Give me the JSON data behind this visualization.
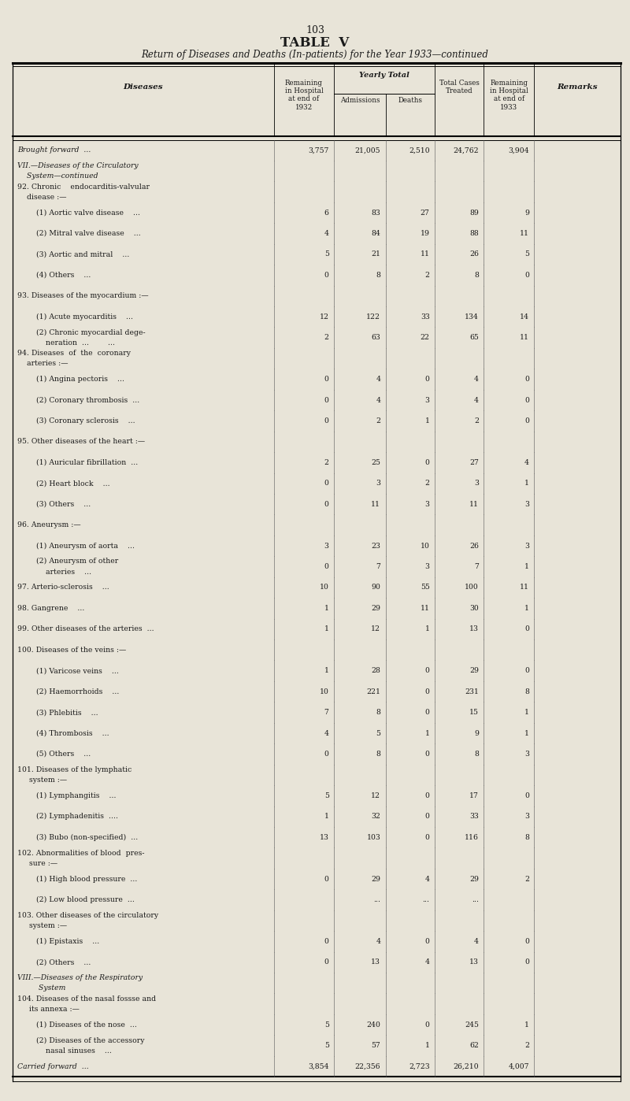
{
  "page_number": "103",
  "title": "TABLE  V",
  "subtitle": "Return of Diseases and Deaths (In-patients) for the Year 1933—continued",
  "bg_color": "#e8e4d8",
  "rows": [
    {
      "disease": "Brought forward  ...",
      "rem1932": "3,757",
      "admissions": "21,005",
      "deaths": "2,510",
      "total": "24,762",
      "rem1933": "3,904",
      "style": "italic"
    },
    {
      "disease": "VII.—Diseases of the Circulatory\n    System—continued",
      "rem1932": "",
      "admissions": "",
      "deaths": "",
      "total": "",
      "rem1933": "",
      "style": "italic"
    },
    {
      "disease": "92. Chronic    endocarditis-valvular\n    disease :—",
      "rem1932": "",
      "admissions": "",
      "deaths": "",
      "total": "",
      "rem1933": "",
      "style": "normal"
    },
    {
      "disease": "        (1) Aortic valve disease    ...",
      "rem1932": "6",
      "admissions": "83",
      "deaths": "27",
      "total": "89",
      "rem1933": "9",
      "style": "normal"
    },
    {
      "disease": "        (2) Mitral valve disease    ...",
      "rem1932": "4",
      "admissions": "84",
      "deaths": "19",
      "total": "88",
      "rem1933": "11",
      "style": "normal"
    },
    {
      "disease": "        (3) Aortic and mitral    ...",
      "rem1932": "5",
      "admissions": "21",
      "deaths": "11",
      "total": "26",
      "rem1933": "5",
      "style": "normal"
    },
    {
      "disease": "        (4) Others    ...",
      "rem1932": "0",
      "admissions": "8",
      "deaths": "2",
      "total": "8",
      "rem1933": "0",
      "style": "normal"
    },
    {
      "disease": "93. Diseases of the myocardium :—",
      "rem1932": "",
      "admissions": "",
      "deaths": "",
      "total": "",
      "rem1933": "",
      "style": "normal"
    },
    {
      "disease": "        (1) Acute myocarditis    ...",
      "rem1932": "12",
      "admissions": "122",
      "deaths": "33",
      "total": "134",
      "rem1933": "14",
      "style": "normal"
    },
    {
      "disease": "        (2) Chronic myocardial dege-\n            neration  ...        ...",
      "rem1932": "2",
      "admissions": "63",
      "deaths": "22",
      "total": "65",
      "rem1933": "11",
      "style": "normal"
    },
    {
      "disease": "94. Diseases  of  the  coronary\n    arteries :—",
      "rem1932": "",
      "admissions": "",
      "deaths": "",
      "total": "",
      "rem1933": "",
      "style": "normal"
    },
    {
      "disease": "        (1) Angina pectoris    ...",
      "rem1932": "0",
      "admissions": "4",
      "deaths": "0",
      "total": "4",
      "rem1933": "0",
      "style": "normal"
    },
    {
      "disease": "        (2) Coronary thrombosis  ...",
      "rem1932": "0",
      "admissions": "4",
      "deaths": "3",
      "total": "4",
      "rem1933": "0",
      "style": "normal"
    },
    {
      "disease": "        (3) Coronary sclerosis    ...",
      "rem1932": "0",
      "admissions": "2",
      "deaths": "1",
      "total": "2",
      "rem1933": "0",
      "style": "normal"
    },
    {
      "disease": "95. Other diseases of the heart :—",
      "rem1932": "",
      "admissions": "",
      "deaths": "",
      "total": "",
      "rem1933": "",
      "style": "normal"
    },
    {
      "disease": "        (1) Auricular fibrillation  ...",
      "rem1932": "2",
      "admissions": "25",
      "deaths": "0",
      "total": "27",
      "rem1933": "4",
      "style": "normal"
    },
    {
      "disease": "        (2) Heart block    ...",
      "rem1932": "0",
      "admissions": "3",
      "deaths": "2",
      "total": "3",
      "rem1933": "1",
      "style": "normal"
    },
    {
      "disease": "        (3) Others    ...",
      "rem1932": "0",
      "admissions": "11",
      "deaths": "3",
      "total": "11",
      "rem1933": "3",
      "style": "normal"
    },
    {
      "disease": "96. Aneurysm :—",
      "rem1932": "",
      "admissions": "",
      "deaths": "",
      "total": "",
      "rem1933": "",
      "style": "normal"
    },
    {
      "disease": "        (1) Aneurysm of aorta    ...",
      "rem1932": "3",
      "admissions": "23",
      "deaths": "10",
      "total": "26",
      "rem1933": "3",
      "style": "normal"
    },
    {
      "disease": "        (2) Aneurysm of other\n            arteries    ...",
      "rem1932": "0",
      "admissions": "7",
      "deaths": "3",
      "total": "7",
      "rem1933": "1",
      "style": "normal"
    },
    {
      "disease": "97. Arterio-sclerosis    ...",
      "rem1932": "10",
      "admissions": "90",
      "deaths": "55",
      "total": "100",
      "rem1933": "11",
      "style": "normal"
    },
    {
      "disease": "98. Gangrene    ...",
      "rem1932": "1",
      "admissions": "29",
      "deaths": "11",
      "total": "30",
      "rem1933": "1",
      "style": "normal"
    },
    {
      "disease": "99. Other diseases of the arteries  ...",
      "rem1932": "1",
      "admissions": "12",
      "deaths": "1",
      "total": "13",
      "rem1933": "0",
      "style": "normal"
    },
    {
      "disease": "100. Diseases of the veins :—",
      "rem1932": "",
      "admissions": "",
      "deaths": "",
      "total": "",
      "rem1933": "",
      "style": "normal"
    },
    {
      "disease": "        (1) Varicose veins    ...",
      "rem1932": "1",
      "admissions": "28",
      "deaths": "0",
      "total": "29",
      "rem1933": "0",
      "style": "normal"
    },
    {
      "disease": "        (2) Haemorrhoids    ...",
      "rem1932": "10",
      "admissions": "221",
      "deaths": "0",
      "total": "231",
      "rem1933": "8",
      "style": "normal"
    },
    {
      "disease": "        (3) Phlebitis    ...",
      "rem1932": "7",
      "admissions": "8",
      "deaths": "0",
      "total": "15",
      "rem1933": "1",
      "style": "normal"
    },
    {
      "disease": "        (4) Thrombosis    ...",
      "rem1932": "4",
      "admissions": "5",
      "deaths": "1",
      "total": "9",
      "rem1933": "1",
      "style": "normal"
    },
    {
      "disease": "        (5) Others    ...",
      "rem1932": "0",
      "admissions": "8",
      "deaths": "0",
      "total": "8",
      "rem1933": "3",
      "style": "normal"
    },
    {
      "disease": "101. Diseases of the lymphatic\n     system :—",
      "rem1932": "",
      "admissions": "",
      "deaths": "",
      "total": "",
      "rem1933": "",
      "style": "normal"
    },
    {
      "disease": "        (1) Lymphangitis    ...",
      "rem1932": "5",
      "admissions": "12",
      "deaths": "0",
      "total": "17",
      "rem1933": "0",
      "style": "normal"
    },
    {
      "disease": "        (2) Lymphadenitis  ....",
      "rem1932": "1",
      "admissions": "32",
      "deaths": "0",
      "total": "33",
      "rem1933": "3",
      "style": "normal"
    },
    {
      "disease": "        (3) Bubo (non-specified)  ...",
      "rem1932": "13",
      "admissions": "103",
      "deaths": "0",
      "total": "116",
      "rem1933": "8",
      "style": "normal"
    },
    {
      "disease": "102. Abnormalities of blood  pres-\n     sure :—",
      "rem1932": "",
      "admissions": "",
      "deaths": "",
      "total": "",
      "rem1933": "",
      "style": "normal"
    },
    {
      "disease": "        (1) High blood pressure  ...",
      "rem1932": "0",
      "admissions": "29",
      "deaths": "4",
      "total": "29",
      "rem1933": "2",
      "style": "normal"
    },
    {
      "disease": "        (2) Low blood pressure  ...",
      "rem1932": "",
      "admissions": "...",
      "deaths": "...",
      "total": "...",
      "rem1933": "",
      "style": "normal"
    },
    {
      "disease": "103. Other diseases of the circulatory\n     system :—",
      "rem1932": "",
      "admissions": "",
      "deaths": "",
      "total": "",
      "rem1933": "",
      "style": "normal"
    },
    {
      "disease": "        (1) Epistaxis    ...",
      "rem1932": "0",
      "admissions": "4",
      "deaths": "0",
      "total": "4",
      "rem1933": "0",
      "style": "normal"
    },
    {
      "disease": "        (2) Others    ...",
      "rem1932": "0",
      "admissions": "13",
      "deaths": "4",
      "total": "13",
      "rem1933": "0",
      "style": "normal"
    },
    {
      "disease": "VIII.—Diseases of the Respiratory\n         System",
      "rem1932": "",
      "admissions": "",
      "deaths": "",
      "total": "",
      "rem1933": "",
      "style": "italic"
    },
    {
      "disease": "104. Diseases of the nasal fossse and\n     its annexa :—",
      "rem1932": "",
      "admissions": "",
      "deaths": "",
      "total": "",
      "rem1933": "",
      "style": "normal"
    },
    {
      "disease": "        (1) Diseases of the nose  ...",
      "rem1932": "5",
      "admissions": "240",
      "deaths": "0",
      "total": "245",
      "rem1933": "1",
      "style": "normal"
    },
    {
      "disease": "        (2) Diseases of the accessory\n            nasal sinuses    ...",
      "rem1932": "5",
      "admissions": "57",
      "deaths": "1",
      "total": "62",
      "rem1933": "2",
      "style": "normal"
    },
    {
      "disease": "Carried forward  ...",
      "rem1932": "3,854",
      "admissions": "22,356",
      "deaths": "2,723",
      "total": "26,210",
      "rem1933": "4,007",
      "style": "italic"
    }
  ]
}
